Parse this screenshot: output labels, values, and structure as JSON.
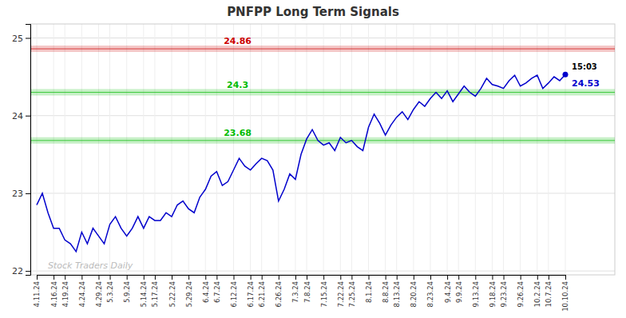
{
  "chart_data": {
    "type": "line",
    "title": "PNFPP Long Term Signals",
    "color": "#0000cc",
    "categories": [
      "4.11.24",
      null,
      null,
      "4.16.24",
      null,
      "4.19.24",
      null,
      null,
      "4.24.24",
      null,
      null,
      "4.29.24",
      null,
      "5.3.24",
      null,
      null,
      "5.9.24",
      null,
      null,
      "5.14.24",
      null,
      "5.17.24",
      null,
      null,
      "5.22.24",
      null,
      null,
      "5.29.24",
      null,
      null,
      "6.4.24",
      null,
      "6.7.24",
      null,
      null,
      "6.12.24",
      null,
      null,
      "6.17.24",
      null,
      "6.21.24",
      null,
      null,
      "6.26.24",
      null,
      null,
      "7.3.24",
      null,
      "7.8.24",
      null,
      null,
      "7.15.24",
      null,
      null,
      "7.22.24",
      null,
      "7.25.24",
      null,
      null,
      "8.1.24",
      null,
      null,
      "8.8.24",
      null,
      "8.13.24",
      null,
      null,
      "8.20.24",
      null,
      null,
      "8.23.24",
      null,
      null,
      "9.4.24",
      null,
      "9.9.24",
      null,
      null,
      "9.13.24",
      null,
      null,
      "9.18.24",
      null,
      "9.23.24",
      null,
      null,
      "9.26.24",
      null,
      null,
      "10.2.24",
      null,
      "10.7.24",
      null,
      null,
      "10.10.24"
    ],
    "values": [
      22.85,
      23.0,
      22.75,
      22.55,
      22.55,
      22.4,
      22.35,
      22.25,
      22.5,
      22.35,
      22.55,
      22.45,
      22.35,
      22.6,
      22.7,
      22.55,
      22.45,
      22.55,
      22.7,
      22.55,
      22.7,
      22.65,
      22.65,
      22.75,
      22.7,
      22.85,
      22.9,
      22.8,
      22.75,
      22.95,
      23.05,
      23.22,
      23.28,
      23.1,
      23.15,
      23.3,
      23.45,
      23.35,
      23.3,
      23.38,
      23.45,
      23.42,
      23.3,
      22.9,
      23.05,
      23.25,
      23.18,
      23.5,
      23.7,
      23.82,
      23.68,
      23.62,
      23.65,
      23.55,
      23.72,
      23.65,
      23.68,
      23.6,
      23.55,
      23.85,
      24.02,
      23.9,
      23.75,
      23.88,
      23.98,
      24.05,
      23.95,
      24.08,
      24.18,
      24.12,
      24.22,
      24.3,
      24.22,
      24.32,
      24.18,
      24.28,
      24.38,
      24.3,
      24.25,
      24.35,
      24.48,
      24.4,
      24.38,
      24.35,
      24.45,
      24.52,
      24.38,
      24.42,
      24.48,
      24.52,
      24.35,
      24.42,
      24.5,
      24.45,
      24.53
    ],
    "reference_lines": [
      {
        "value": 24.86,
        "label": "24.86",
        "color": "#cc0000"
      },
      {
        "value": 24.3,
        "label": "24.3",
        "color": "#00bb00"
      },
      {
        "value": 23.68,
        "label": "23.68",
        "color": "#00bb00"
      }
    ],
    "annotations": [
      {
        "text": "15:03",
        "y": 24.53
      },
      {
        "text": "24.53",
        "y": 24.53
      }
    ],
    "watermark": "Stock Traders Daily",
    "ylim": [
      21.95,
      25.18
    ],
    "yticks": [
      22,
      23,
      24,
      25
    ],
    "grid": true
  }
}
